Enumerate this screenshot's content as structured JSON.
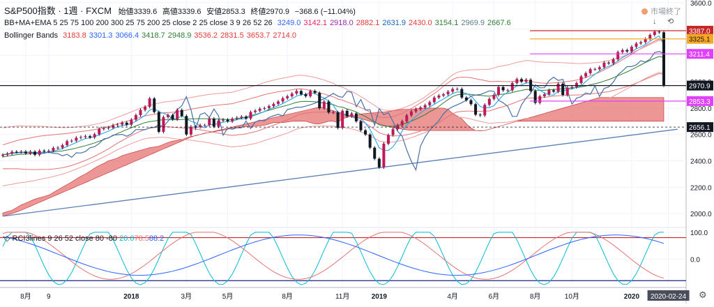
{
  "header": {
    "symbol": "S&P500指数",
    "interval": "1週",
    "source": "FXCM",
    "open_label": "始値",
    "open": "3339.6",
    "high_label": "高値",
    "high": "3339.6",
    "low_label": "安値",
    "low": "2853.3",
    "close_label": "終値",
    "close": "2970.9",
    "change": "−368.6 (−11.04%)",
    "market_status": "市場終了"
  },
  "indicators": {
    "bbma": {
      "label": "BB+MA+EMA 5 25 75 100 200 300 25 75 200 25 close 2 25 close 3 9 26 52 26",
      "values": [
        "3249.0",
        "3142.1",
        "2918.0",
        "2882.1",
        "2631.9",
        "2430.0",
        "3154.1",
        "2969.9",
        "2667.6"
      ],
      "colors": [
        "#2962ff",
        "#e91e63",
        "#9c27b0",
        "#e53935",
        "#1565c0",
        "#e53935",
        "#2e7d32",
        "#607d8b",
        "#2e7d32"
      ]
    },
    "bollinger": {
      "label": "Bollinger Bands",
      "values": [
        "3183.8",
        "3301.3",
        "3066.4",
        "3418.7",
        "2948.9",
        "3536.2",
        "2831.5",
        "3653.7",
        "2714.0"
      ],
      "colors": [
        "#e53935",
        "#2962ff",
        "#2962ff",
        "#2e7d32",
        "#2e7d32",
        "#e53935",
        "#e53935",
        "#e53935",
        "#e53935"
      ]
    },
    "rci": {
      "label": "RCI3lines 9 26 52 close 80 -80",
      "values": [
        "20.0",
        "78.5",
        "88.2"
      ],
      "colors": [
        "#00bcd4",
        "#e57373",
        "#2962ff"
      ]
    }
  },
  "chart_data": {
    "type": "line",
    "price_axis": {
      "ticks": [
        2000,
        2200,
        2400,
        2600,
        2800,
        3000,
        3200,
        3400,
        3600
      ],
      "labels": [
        "2000.0",
        "2200.0",
        "2400.0",
        "2600.0",
        "2800.0",
        "3000.0",
        "3200.0",
        "3400.0",
        "3600.0"
      ],
      "range": [
        1900,
        3620
      ]
    },
    "rci_axis": {
      "ticks": [
        100,
        0
      ],
      "labels": [
        "100.0",
        "0.0"
      ],
      "range": [
        -100,
        110
      ]
    },
    "time_axis": {
      "labels": [
        "8月",
        "9",
        "2018",
        "3月",
        "5月",
        "8月",
        "11月",
        "2019",
        "4月",
        "6月",
        "8月",
        "10月",
        "2020",
        "2020-02-24"
      ],
      "bold": [
        false,
        false,
        true,
        false,
        false,
        false,
        false,
        true,
        false,
        false,
        false,
        false,
        true,
        false
      ],
      "weeks": [
        5,
        10,
        28,
        40,
        49,
        62,
        74,
        82,
        98,
        107,
        116,
        124,
        137,
        145
      ]
    },
    "price_tags": [
      {
        "label": "3387.0",
        "value": 3387.0,
        "color": "#c62828"
      },
      {
        "label": "3325.1",
        "value": 3325.1,
        "color": "#f9a825"
      },
      {
        "label": "3211.4",
        "value": 3211.4,
        "color": "#e040fb"
      },
      {
        "label": "2970.9",
        "value": 2970.9,
        "color": "#131722"
      },
      {
        "label": "2853.3",
        "value": 2853.3,
        "color": "#e040fb"
      },
      {
        "label": "2656.1",
        "value": 2656.1,
        "color": "#131722"
      }
    ],
    "candles_close": [
      2446,
      2455,
      2469,
      2467,
      2470,
      2457,
      2470,
      2446,
      2477,
      2471,
      2476,
      2498,
      2500,
      2519,
      2549,
      2553,
      2575,
      2580,
      2587,
      2578,
      2602,
      2642,
      2648,
      2652,
      2670,
      2675,
      2690,
      2674,
      2712,
      2747,
      2786,
      2810,
      2873,
      2770,
      2620,
      2732,
      2747,
      2715,
      2786,
      2740,
      2600,
      2659,
      2656,
      2670,
      2670,
      2720,
      2660,
      2705,
      2712,
      2700,
      2720,
      2727,
      2735,
      2721,
      2770,
      2780,
      2795,
      2800,
      2815,
      2832,
      2850,
      2875,
      2890,
      2910,
      2930,
      2905,
      2890,
      2930,
      2916,
      2800,
      2850,
      2767,
      2768,
      2650,
      2780,
      2738,
      2760,
      2700,
      2632,
      2600,
      2500,
      2416,
      2351,
      2530,
      2596,
      2640,
      2670,
      2700,
      2745,
      2775,
      2792,
      2805,
      2822,
      2845,
      2880,
      2895,
      2905,
      2925,
      2945,
      2945,
      2880,
      2860,
      2830,
      2750,
      2745,
      2825,
      2870,
      2900,
      2960,
      2935,
      2935,
      2990,
      3020,
      3000,
      3015,
      2930,
      2840,
      2890,
      2905,
      2935,
      2925,
      2985,
      2900,
      2955,
      2960,
      2990,
      3040,
      3065,
      3095,
      3095,
      3110,
      3145,
      3140,
      3170,
      3225,
      3240,
      3230,
      3265,
      3290,
      3300,
      3325,
      3355,
      3380,
      3375,
      2970.9
    ],
    "sma25": [
      2430,
      2436,
      2441,
      2447,
      2450,
      2451,
      2454,
      2457,
      2461,
      2463,
      2465,
      2468,
      2472,
      2476,
      2482,
      2489,
      2497,
      2506,
      2515,
      2525,
      2536,
      2549,
      2561,
      2575,
      2591,
      2608,
      2622,
      2637,
      2651,
      2665,
      2678,
      2690,
      2698,
      2702,
      2708,
      2712,
      2712,
      2712,
      2712,
      2714,
      2716,
      2719,
      2719,
      2720,
      2720,
      2720,
      2718,
      2717,
      2715,
      2714,
      2713,
      2720,
      2726,
      2733,
      2743,
      2751,
      2762,
      2774,
      2784,
      2794,
      2804,
      2813,
      2822,
      2833,
      2844,
      2850,
      2851,
      2850,
      2848,
      2843,
      2839,
      2832,
      2826,
      2812,
      2807,
      2794,
      2784,
      2771,
      2753,
      2737,
      2715,
      2696,
      2673,
      2665,
      2662,
      2662,
      2669,
      2676,
      2688,
      2701,
      2716,
      2733,
      2750,
      2773,
      2790,
      2813,
      2840,
      2864,
      2888,
      2901,
      2905,
      2906,
      2904,
      2899,
      2896,
      2893,
      2890,
      2896,
      2903,
      2906,
      2911,
      2918,
      2927,
      2934,
      2942,
      2940,
      2936,
      2935,
      2935,
      2938,
      2941,
      2944,
      2947,
      2950,
      2953,
      2956,
      2961,
      2968,
      2977,
      2985,
      2993,
      3005,
      3016,
      3030,
      3045,
      3060,
      3075,
      3092,
      3110,
      3128,
      3146,
      3162,
      3178,
      3192,
      3185
    ],
    "ichimoku_span_a": [
      2005,
      2015,
      2025,
      2045,
      2065,
      2080,
      2095,
      2110,
      2120,
      2130,
      2140,
      2160,
      2180,
      2200,
      2220,
      2240,
      2262,
      2283,
      2300,
      2322,
      2345,
      2365,
      2380,
      2400,
      2410,
      2422,
      2440,
      2450,
      2460,
      2470,
      2480,
      2490,
      2500,
      2505,
      2510,
      2525,
      2540,
      2550,
      2555,
      2560,
      2575,
      2585,
      2590,
      2600,
      2610,
      2615,
      2620,
      2628,
      2632,
      2640,
      2648,
      2650,
      2655,
      2660,
      2660,
      2662,
      2665,
      2670,
      2680,
      2690,
      2690,
      2690,
      2695,
      2700,
      2700,
      2700,
      2700,
      2690,
      2680,
      2680,
      2690,
      2700,
      2700,
      2690,
      2720,
      2730,
      2740,
      2745,
      2755,
      2760,
      2762,
      2765,
      2770,
      2770,
      2775,
      2780,
      2785,
      2790,
      2790,
      2792,
      2795,
      2798,
      2800,
      2800,
      2800,
      2800,
      2800,
      2790,
      2760,
      2740,
      2720,
      2680,
      2650,
      2630,
      2628,
      2630,
      2640,
      2650,
      2660,
      2670,
      2680,
      2690,
      2700,
      2710,
      2720,
      2730,
      2740,
      2750,
      2760,
      2770,
      2780,
      2790,
      2800,
      2810,
      2820,
      2830,
      2840,
      2850,
      2860,
      2870,
      2880,
      2880,
      2880,
      2880,
      2880,
      2880,
      2880,
      2880,
      2880,
      2880,
      2880,
      2880,
      2880,
      2880,
      2880
    ],
    "ichimoku_span_b": [
      1980,
      1990,
      2000,
      2012,
      2025,
      2040,
      2055,
      2070,
      2085,
      2100,
      2115,
      2130,
      2145,
      2160,
      2175,
      2190,
      2205,
      2220,
      2235,
      2250,
      2265,
      2280,
      2295,
      2310,
      2325,
      2340,
      2355,
      2370,
      2385,
      2400,
      2415,
      2430,
      2445,
      2460,
      2475,
      2490,
      2505,
      2520,
      2535,
      2550,
      2565,
      2580,
      2592,
      2600,
      2608,
      2616,
      2624,
      2632,
      2640,
      2648,
      2656,
      2664,
      2672,
      2680,
      2688,
      2696,
      2704,
      2712,
      2720,
      2728,
      2736,
      2744,
      2752,
      2760,
      2768,
      2776,
      2784,
      2792,
      2800,
      2808,
      2800,
      2790,
      2780,
      2770,
      2760,
      2750,
      2740,
      2730,
      2720,
      2710,
      2700,
      2690,
      2680,
      2670,
      2660,
      2650,
      2645,
      2640,
      2635,
      2632,
      2630,
      2630,
      2630,
      2630,
      2630,
      2630,
      2630,
      2630,
      2630,
      2630,
      2630,
      2630,
      2630,
      2630,
      2630,
      2630,
      2640,
      2650,
      2660,
      2670,
      2680,
      2690,
      2700,
      2700,
      2700,
      2700,
      2700,
      2700,
      2700,
      2700,
      2700,
      2700,
      2700,
      2700,
      2700,
      2700,
      2700,
      2700,
      2700,
      2700,
      2700,
      2700,
      2700,
      2700,
      2700,
      2700,
      2700,
      2700,
      2700,
      2700,
      2700,
      2700,
      2700,
      2700,
      2700
    ],
    "trendline": {
      "from": [
        0,
        1980
      ],
      "to": [
        147,
        2640
      ]
    },
    "rci_series": [
      {
        "name": "RCI 9",
        "color": "#00bcd4"
      },
      {
        "name": "RCI 26",
        "color": "#e57373"
      },
      {
        "name": "RCI 52",
        "color": "#2962ff"
      }
    ],
    "rci_levels": [
      80,
      -80
    ]
  }
}
